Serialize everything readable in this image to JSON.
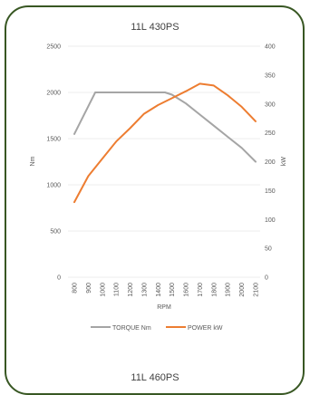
{
  "chart_data": {
    "type": "line",
    "title": "11L 430PS",
    "footer_title": "11L 460PS",
    "xlabel": "RPM",
    "ylabel_left": "Nm",
    "ylabel_right": "kW",
    "categories": [
      "800",
      "900",
      "1000",
      "1100",
      "1200",
      "1300",
      "1400",
      "1500",
      "1600",
      "1700",
      "1800",
      "1900",
      "2000",
      "2100"
    ],
    "ylim_left": [
      0,
      2500
    ],
    "ylim_right": [
      0,
      400
    ],
    "yticks_left": [
      0,
      500,
      1000,
      1500,
      2000,
      2500
    ],
    "yticks_right": [
      0,
      50,
      100,
      150,
      200,
      250,
      300,
      350,
      400
    ],
    "grid": true,
    "legend_position": "bottom",
    "series": [
      {
        "name": "TORQUE Nm",
        "axis": "left",
        "color": "#a5a5a5",
        "x": [
          800,
          900,
          950,
          1000,
          1100,
          1200,
          1300,
          1400,
          1450,
          1500,
          1600,
          1700,
          1800,
          1900,
          2000,
          2100
        ],
        "values": [
          1550,
          1850,
          2000,
          2000,
          2000,
          2000,
          2000,
          2000,
          2000,
          1975,
          1880,
          1760,
          1640,
          1520,
          1400,
          1250
        ]
      },
      {
        "name": "POWER kW",
        "axis": "right",
        "color": "#ed7d31",
        "x": [
          800,
          900,
          1000,
          1100,
          1200,
          1300,
          1400,
          1500,
          1600,
          1700,
          1800,
          1900,
          2000,
          2100
        ],
        "values": [
          130,
          175,
          205,
          235,
          258,
          283,
          298,
          310,
          322,
          335,
          332,
          315,
          295,
          270
        ]
      }
    ]
  }
}
